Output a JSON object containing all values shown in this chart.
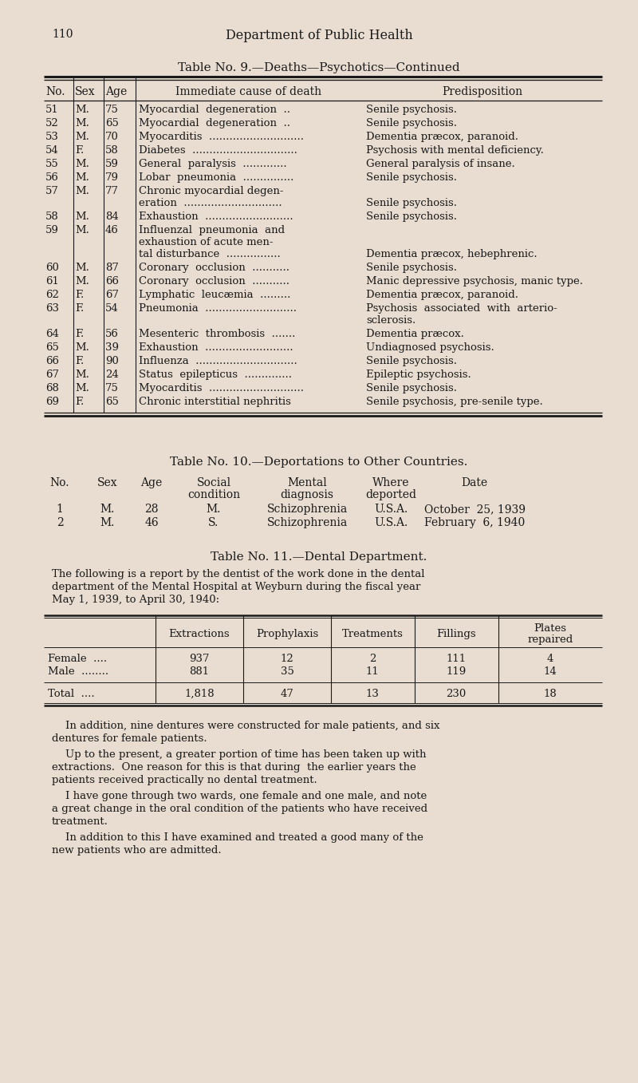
{
  "bg_color": "#e8ddd0",
  "text_color": "#1a1a1a",
  "page_number": "110",
  "page_header": "Department of Public Health",
  "table9_title": "Table No. 9.—Deaths—Psychotics—Continued",
  "table9_rows": [
    [
      "51",
      "M.",
      "75",
      "Myocardial  degeneration  ..",
      "Senile psychosis."
    ],
    [
      "52",
      "M.",
      "65",
      "Myocardial  degeneration  ..",
      "Senile psychosis."
    ],
    [
      "53",
      "M.",
      "70",
      "Myocarditis  ............................",
      "Dementia præcox, paranoid."
    ],
    [
      "54",
      "F.",
      "58",
      "Diabetes  ...............................",
      "Psychosis with mental deficiency."
    ],
    [
      "55",
      "M.",
      "59",
      "General  paralysis  .............",
      "General paralysis of insane."
    ],
    [
      "56",
      "M.",
      "79",
      "Lobar  pneumonia  ...............",
      "Senile psychosis."
    ],
    [
      "57",
      "M.",
      "77",
      "Chronic myocardial degen-\neration  .............................",
      "Senile psychosis."
    ],
    [
      "58",
      "M.",
      "84",
      "Exhaustion  ..........................",
      "Senile psychosis."
    ],
    [
      "59",
      "M.",
      "46",
      "Influenzal  pneumonia  and\nexhaustion of acute men-\ntal disturbance  ................",
      "Dementia præcox, hebephrenic."
    ],
    [
      "60",
      "M.",
      "87",
      "Coronary  occlusion  ...........",
      "Senile psychosis."
    ],
    [
      "61",
      "M.",
      "66",
      "Coronary  occlusion  ...........",
      "Manic depressive psychosis, manic type."
    ],
    [
      "62",
      "F.",
      "67",
      "Lymphatic  leucæmia  .........",
      "Dementia præcox, paranoid."
    ],
    [
      "63",
      "F.",
      "54",
      "Pneumonia  ...........................",
      "Psychosis  associated  with  arterio-\nsclerosis."
    ],
    [
      "64",
      "F.",
      "56",
      "Mesenteric  thrombosis  .......",
      "Dementia præcox."
    ],
    [
      "65",
      "M.",
      "39",
      "Exhaustion  ..........................",
      "Undiagnosed psychosis."
    ],
    [
      "66",
      "F.",
      "90",
      "Influenza  ..............................",
      "Senile psychosis."
    ],
    [
      "67",
      "M.",
      "24",
      "Status  epilepticus  ..............",
      "Epileptic psychosis."
    ],
    [
      "68",
      "M.",
      "75",
      "Myocarditis  ............................",
      "Senile psychosis."
    ],
    [
      "69",
      "F.",
      "65",
      "Chronic interstitial nephritis",
      "Senile psychosis, pre-senile type."
    ]
  ],
  "table10_title": "Table No. 10.—Deportations to Other Countries.",
  "table10_rows": [
    [
      "1",
      "M.",
      "28",
      "M.",
      "Schizophrenia",
      "U.S.A.",
      "October  25, 1939"
    ],
    [
      "2",
      "M.",
      "46",
      "S.",
      "Schizophrenia",
      "U.S.A.",
      "February  6, 1940"
    ]
  ],
  "table11_title": "Table No. 11.—Dental Department.",
  "table11_intro": "The following is a report by the dentist of the work done in the dental\ndepartment of the Mental Hospital at Weyburn during the fiscal year\nMay 1, 1939, to April 30, 1940:",
  "table11_rows": [
    [
      "Female  ....",
      "937",
      "12",
      "2",
      "111",
      "4"
    ],
    [
      "Male  ........",
      "881",
      "35",
      "11",
      "119",
      "14"
    ]
  ],
  "table11_total": [
    "Total  ....",
    "1,818",
    "47",
    "13",
    "230",
    "18"
  ],
  "table11_para1": "    In addition, nine dentures were constructed for male patients, and six\ndentures for female patients.",
  "table11_para2": "    Up to the present, a greater portion of time has been taken up with\nextractions.  One reason for this is that during  the earlier years the\npatients received practically no dental treatment.",
  "table11_para3": "    I have gone through two wards, one female and one male, and note\na great change in the oral condition of the patients who have received\ntreatment.",
  "table11_para4": "    In addition to this I have examined and treated a good many of the\nnew patients who are admitted."
}
